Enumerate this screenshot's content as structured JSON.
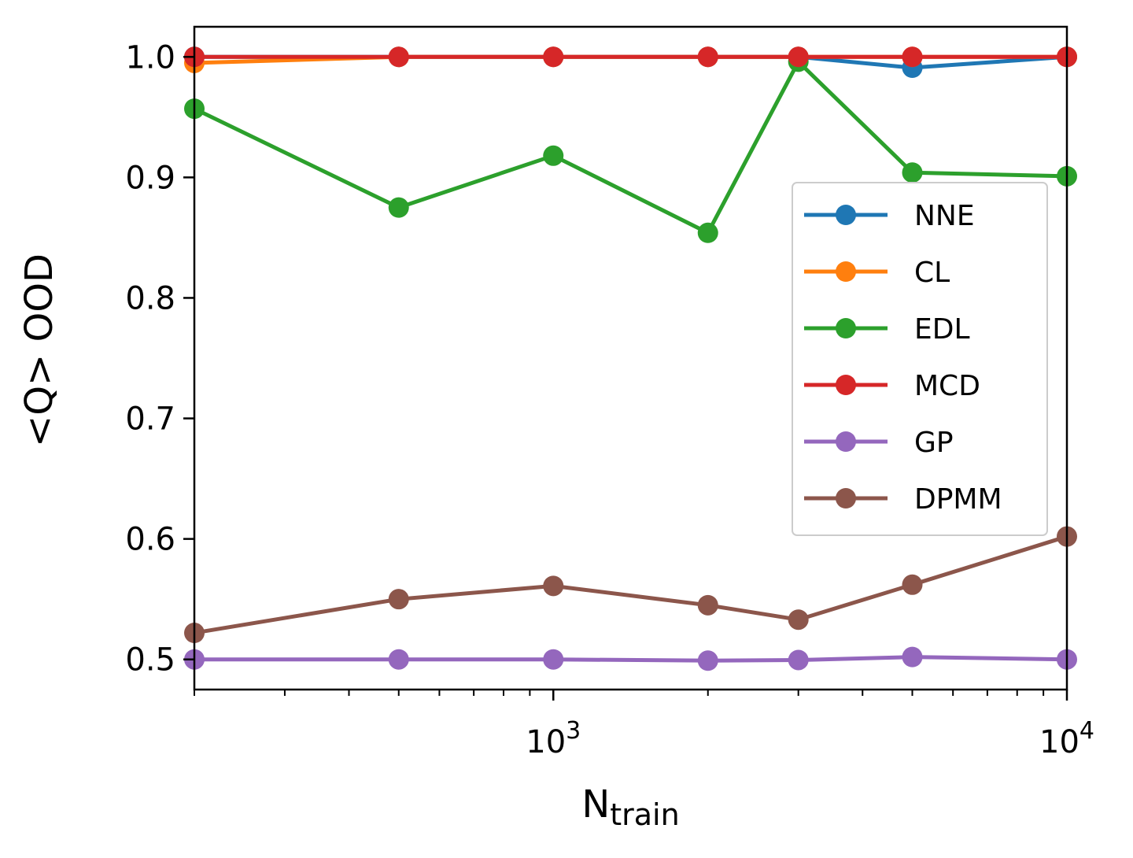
{
  "chart_data": {
    "type": "line",
    "xscale": "log",
    "xlabel_main": "N",
    "xlabel_sub": "train",
    "ylabel": "<Q> OOD",
    "xlim": [
      200,
      10000
    ],
    "ylim": [
      0.475,
      1.025
    ],
    "x": [
      200,
      500,
      1000,
      2000,
      3000,
      5000,
      10000
    ],
    "xticks": [
      {
        "value": 1000,
        "base": "10",
        "exp": "3"
      },
      {
        "value": 10000,
        "base": "10",
        "exp": "4"
      }
    ],
    "yticks": [
      {
        "value": 0.5,
        "label": "0.5"
      },
      {
        "value": 0.6,
        "label": "0.6"
      },
      {
        "value": 0.7,
        "label": "0.7"
      },
      {
        "value": 0.8,
        "label": "0.8"
      },
      {
        "value": 0.9,
        "label": "0.9"
      },
      {
        "value": 1.0,
        "label": "1.0"
      }
    ],
    "grid": false,
    "legend_position": "center-right",
    "series": [
      {
        "name": "NNE",
        "color": "#1f77b4",
        "values": [
          1.0,
          1.0,
          1.0,
          1.0,
          1.0,
          0.991,
          1.0
        ]
      },
      {
        "name": "CL",
        "color": "#ff7f0e",
        "values": [
          0.995,
          1.0,
          1.0,
          1.0,
          1.0,
          1.0,
          1.0
        ]
      },
      {
        "name": "EDL",
        "color": "#2ca02c",
        "values": [
          0.957,
          0.875,
          0.918,
          0.854,
          0.996,
          0.904,
          0.901
        ]
      },
      {
        "name": "MCD",
        "color": "#d62728",
        "values": [
          1.0,
          1.0,
          1.0,
          1.0,
          1.0,
          1.0,
          1.0
        ]
      },
      {
        "name": "GP",
        "color": "#9467bd",
        "values": [
          0.5,
          0.5,
          0.5,
          0.499,
          0.4995,
          0.502,
          0.5
        ]
      },
      {
        "name": "DPMM",
        "color": "#8c564b",
        "values": [
          0.522,
          0.55,
          0.561,
          0.545,
          0.533,
          0.562,
          0.602
        ]
      }
    ]
  }
}
